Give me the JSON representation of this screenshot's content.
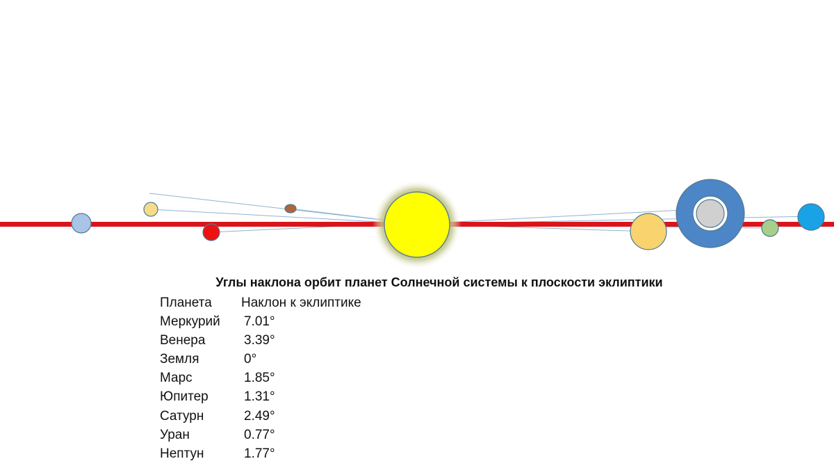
{
  "title": "Углы наклона орбит планет Солнечной системы к плоскости эклиптики",
  "table": {
    "header": [
      "Планета",
      "Наклон к эклиптике"
    ],
    "rows": [
      [
        "Меркурий",
        "7.01°"
      ],
      [
        "Венера",
        "3.39°"
      ],
      [
        "Земля",
        "0°"
      ],
      [
        "Марс",
        "1.85°"
      ],
      [
        "Юпитер",
        "1.31°"
      ],
      [
        "Сатурн",
        "2.49°"
      ],
      [
        "Уран",
        "0.77°"
      ],
      [
        "Нептун",
        "1.77°"
      ]
    ]
  }
}
